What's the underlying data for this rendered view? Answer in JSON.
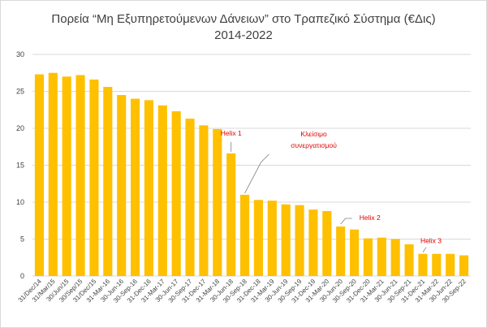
{
  "chart_data": {
    "type": "bar",
    "title": "Πορεία “Μη Εξυπηρετούμενων  Δάνειων” στο Τραπεζικό Σύστημα (€Δις)",
    "subtitle": "2014-2022",
    "categories": [
      "31/Dec/14",
      "31/Mar/15",
      "30/Jun/15",
      "30/Sep/15",
      "31/Dec/15",
      "31-Mar-16",
      "30-Jun-16",
      "30-Sep-16",
      "31-Dec-16",
      "31-Mar-17",
      "30-Jun-17",
      "30-Sep-17",
      "31-Dec-17",
      "31-Mar-18",
      "30-Jun-18",
      "30-Sep-18",
      "31-Dec-18",
      "31-Mar-19",
      "30-Jun-19",
      "30-Sep-19",
      "31-Dec-19",
      "31-Mar-20",
      "30-Jun-20",
      "30-Sep-20",
      "31-Dec-20",
      "31-Mar-21",
      "30-Jun-21",
      "30-Sep-21",
      "31-Dec-21",
      "31-Mar-22",
      "30-Jun-22",
      "30-Sep-22"
    ],
    "values": [
      27.3,
      27.5,
      27.0,
      27.2,
      26.6,
      25.6,
      24.5,
      24.0,
      23.8,
      23.1,
      22.3,
      21.3,
      20.4,
      19.9,
      16.6,
      11.0,
      10.3,
      10.2,
      9.7,
      9.6,
      9.0,
      8.8,
      6.7,
      6.3,
      5.1,
      5.2,
      5.0,
      4.3,
      3.0,
      3.0,
      3.0,
      2.8
    ],
    "color": "#ffc000",
    "ylim": [
      0,
      30
    ],
    "yticks": [
      0,
      5,
      10,
      15,
      20,
      25,
      30
    ],
    "grid": true,
    "annotations": [
      {
        "lines": [
          "Helix 1"
        ],
        "category": "30-Jun-18"
      },
      {
        "lines": [
          "Κλείσιμο",
          "συνεργατισμού"
        ],
        "category": "30-Sep-18"
      },
      {
        "lines": [
          "Helix 2"
        ],
        "category": "30-Jun-20"
      },
      {
        "lines": [
          "Helix 3"
        ],
        "category": "31-Dec-21"
      }
    ],
    "annotation_color": "#e00000"
  }
}
